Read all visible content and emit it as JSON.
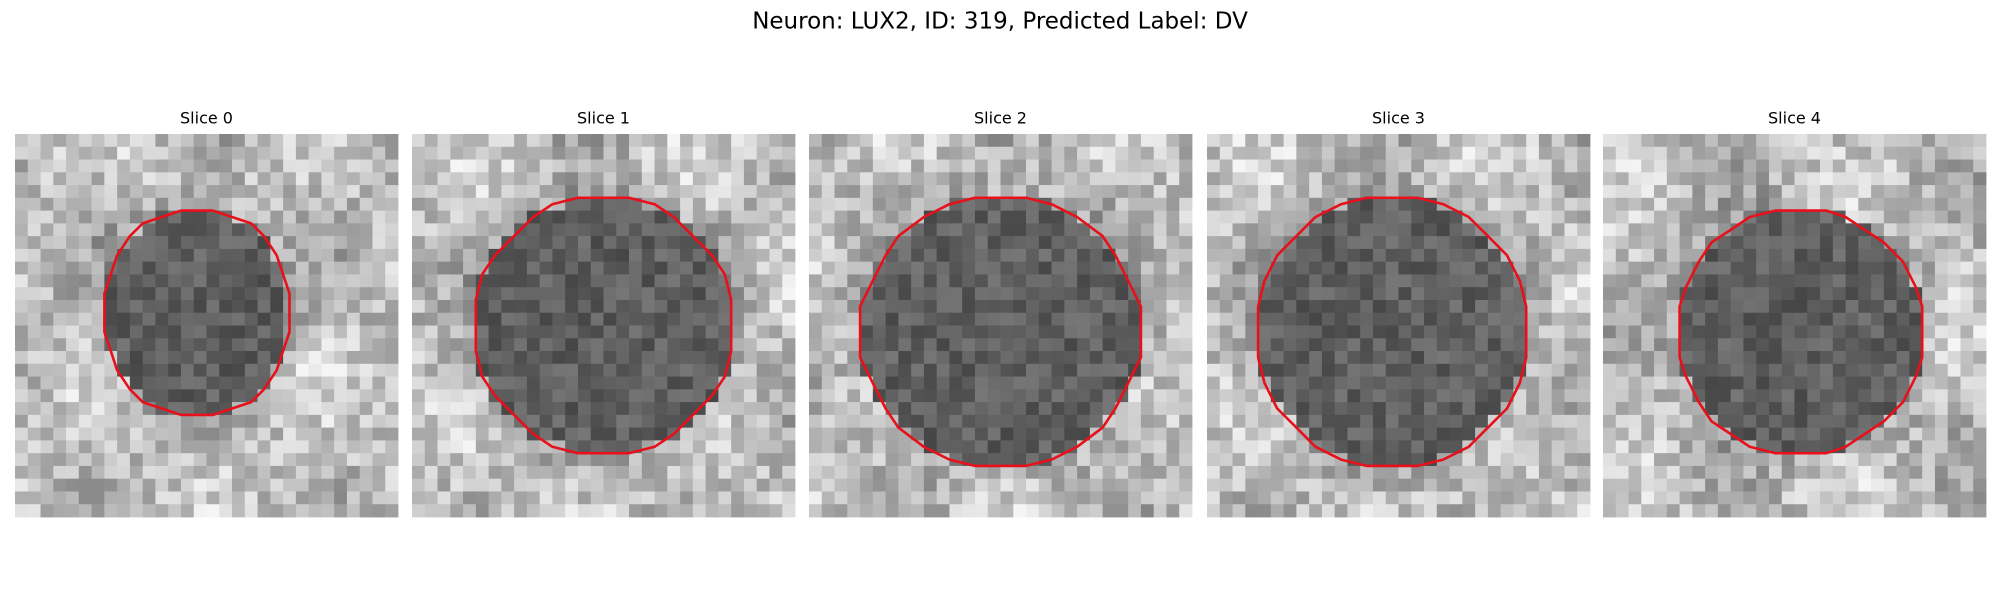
{
  "title": "Neuron: LUX2, ID: 319, Predicted Label: DV",
  "panels": [
    {
      "title": "Slice 0"
    },
    {
      "title": "Slice 1"
    },
    {
      "title": "Slice 2"
    },
    {
      "title": "Slice 3"
    },
    {
      "title": "Slice 4"
    }
  ]
}
